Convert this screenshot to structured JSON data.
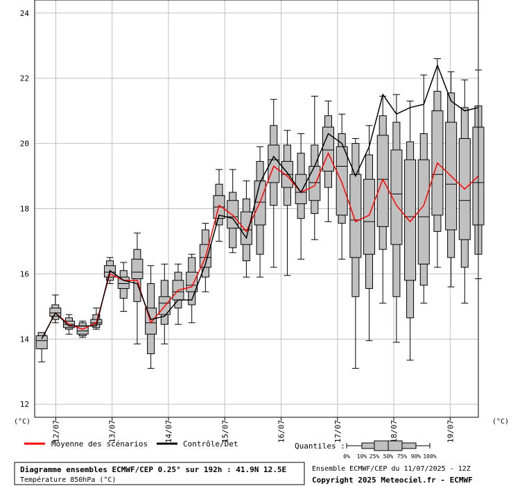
{
  "chart_data": {
    "type": "boxplot",
    "ylim": [
      11.6,
      24.4
    ],
    "yticks": [
      12,
      14,
      16,
      18,
      20,
      22,
      24
    ],
    "y_unit_left": "(°C)",
    "y_unit_right": "(°C)",
    "x_range_hours": [
      3,
      192
    ],
    "x_ticks": [
      {
        "label": "12/07",
        "hour": 12
      },
      {
        "label": "13/07",
        "hour": 36
      },
      {
        "label": "14/07",
        "hour": 60
      },
      {
        "label": "15/07",
        "hour": 84
      },
      {
        "label": "16/07",
        "hour": 108
      },
      {
        "label": "17/07",
        "hour": 132
      },
      {
        "label": "18/07",
        "hour": 156
      },
      {
        "label": "19/07",
        "hour": 180
      }
    ],
    "grid": true,
    "series": [
      {
        "name": "Moyenne des scénarios",
        "color": "#ff0000",
        "values": [
          14.0,
          14.8,
          14.45,
          14.3,
          14.5,
          16.0,
          15.8,
          15.8,
          14.5,
          15.0,
          15.5,
          15.6,
          16.5,
          18.1,
          17.8,
          17.3,
          18.2,
          19.3,
          19.0,
          18.5,
          18.7,
          19.7,
          18.8,
          17.6,
          17.8,
          18.9,
          18.1,
          17.6,
          18.1,
          19.4,
          19.0,
          18.6,
          19.0
        ]
      },
      {
        "name": "Contrôle/Det",
        "color": "#000000",
        "values": [
          14.0,
          14.8,
          14.4,
          14.4,
          14.4,
          16.1,
          15.8,
          15.7,
          14.6,
          14.7,
          15.2,
          15.2,
          16.3,
          17.8,
          17.7,
          17.1,
          18.8,
          19.6,
          19.1,
          18.5,
          19.3,
          20.3,
          20.0,
          19.0,
          19.9,
          21.5,
          20.9,
          21.1,
          21.2,
          22.4,
          21.3,
          21.0,
          21.1
        ]
      }
    ],
    "boxes": [
      {
        "min": 13.3,
        "p10": 13.7,
        "p25": 13.7,
        "p50": 13.95,
        "p75": 14.1,
        "p90": 14.2,
        "max": 14.2
      },
      {
        "min": 14.5,
        "p10": 14.6,
        "p25": 14.7,
        "p50": 14.8,
        "p75": 14.95,
        "p90": 15.05,
        "max": 15.35
      },
      {
        "min": 14.15,
        "p10": 14.3,
        "p25": 14.35,
        "p50": 14.45,
        "p75": 14.55,
        "p90": 14.65,
        "max": 14.75
      },
      {
        "min": 14.05,
        "p10": 14.1,
        "p25": 14.15,
        "p50": 14.25,
        "p75": 14.4,
        "p90": 14.5,
        "max": 14.55
      },
      {
        "min": 14.3,
        "p10": 14.35,
        "p25": 14.45,
        "p50": 14.5,
        "p75": 14.6,
        "p90": 14.75,
        "max": 14.95
      },
      {
        "min": 15.7,
        "p10": 15.8,
        "p25": 15.9,
        "p50": 16.05,
        "p75": 16.25,
        "p90": 16.4,
        "max": 16.5
      },
      {
        "min": 14.85,
        "p10": 15.25,
        "p25": 15.55,
        "p50": 15.7,
        "p75": 15.9,
        "p90": 16.1,
        "max": 16.35
      },
      {
        "min": 13.85,
        "p10": 15.15,
        "p25": 15.85,
        "p50": 16.05,
        "p75": 16.45,
        "p90": 16.75,
        "max": 17.25
      },
      {
        "min": 13.1,
        "p10": 13.55,
        "p25": 14.15,
        "p50": 14.5,
        "p75": 14.95,
        "p90": 15.7,
        "max": 16.25
      },
      {
        "min": 13.85,
        "p10": 14.45,
        "p25": 14.75,
        "p50": 15.1,
        "p75": 15.3,
        "p90": 15.8,
        "max": 16.3
      },
      {
        "min": 14.45,
        "p10": 14.95,
        "p25": 15.2,
        "p50": 15.45,
        "p75": 15.8,
        "p90": 16.05,
        "max": 16.3
      },
      {
        "min": 14.5,
        "p10": 15.05,
        "p25": 15.45,
        "p50": 15.65,
        "p75": 16.05,
        "p90": 16.5,
        "max": 16.6
      },
      {
        "min": 15.45,
        "p10": 15.9,
        "p25": 16.2,
        "p50": 16.5,
        "p75": 16.9,
        "p90": 17.35,
        "max": 17.55
      },
      {
        "min": 17.0,
        "p10": 17.5,
        "p25": 17.7,
        "p50": 18.05,
        "p75": 18.4,
        "p90": 18.75,
        "max": 19.2
      },
      {
        "min": 16.65,
        "p10": 16.8,
        "p25": 17.4,
        "p50": 17.75,
        "p75": 18.25,
        "p90": 18.5,
        "max": 19.2
      },
      {
        "min": 15.9,
        "p10": 16.4,
        "p25": 16.9,
        "p50": 17.35,
        "p75": 17.9,
        "p90": 18.3,
        "max": 18.85
      },
      {
        "min": 15.9,
        "p10": 16.6,
        "p25": 17.5,
        "p50": 18.2,
        "p75": 18.85,
        "p90": 19.45,
        "max": 19.9
      },
      {
        "min": 16.2,
        "p10": 18.1,
        "p25": 18.8,
        "p50": 19.5,
        "p75": 19.95,
        "p90": 20.55,
        "max": 21.35
      },
      {
        "min": 15.95,
        "p10": 18.1,
        "p25": 18.65,
        "p50": 19.05,
        "p75": 19.45,
        "p90": 19.95,
        "max": 20.4
      },
      {
        "min": 16.45,
        "p10": 17.7,
        "p25": 18.15,
        "p50": 18.5,
        "p75": 19.05,
        "p90": 19.7,
        "max": 20.3
      },
      {
        "min": 17.05,
        "p10": 17.85,
        "p25": 18.25,
        "p50": 18.8,
        "p75": 19.3,
        "p90": 19.95,
        "max": 21.45
      },
      {
        "min": 17.6,
        "p10": 18.65,
        "p25": 19.15,
        "p50": 19.8,
        "p75": 20.5,
        "p90": 20.85,
        "max": 21.3
      },
      {
        "min": 16.45,
        "p10": 17.55,
        "p25": 17.8,
        "p50": 19.3,
        "p75": 19.9,
        "p90": 20.3,
        "max": 20.9
      },
      {
        "min": 13.1,
        "p10": 15.3,
        "p25": 16.5,
        "p50": 17.65,
        "p75": 19.05,
        "p90": 20.0,
        "max": 20.15
      },
      {
        "min": 13.95,
        "p10": 15.55,
        "p25": 16.6,
        "p50": 17.6,
        "p75": 18.9,
        "p90": 19.65,
        "max": 20.55
      },
      {
        "min": 15.1,
        "p10": 16.75,
        "p25": 17.45,
        "p50": 18.9,
        "p75": 20.25,
        "p90": 20.85,
        "max": 21.45
      },
      {
        "min": 13.9,
        "p10": 15.3,
        "p25": 16.9,
        "p50": 18.45,
        "p75": 19.8,
        "p90": 20.65,
        "max": 21.5
      },
      {
        "min": 13.35,
        "p10": 14.65,
        "p25": 15.8,
        "p50": 17.75,
        "p75": 19.5,
        "p90": 20.05,
        "max": 21.3
      },
      {
        "min": 15.1,
        "p10": 15.65,
        "p25": 16.3,
        "p50": 17.75,
        "p75": 19.5,
        "p90": 20.3,
        "max": 22.1
      },
      {
        "min": 16.2,
        "p10": 17.3,
        "p25": 17.8,
        "p50": 19.05,
        "p75": 21.0,
        "p90": 21.6,
        "max": 22.6
      },
      {
        "min": 15.6,
        "p10": 16.5,
        "p25": 17.35,
        "p50": 18.75,
        "p75": 20.65,
        "p90": 21.55,
        "max": 22.2
      },
      {
        "min": 15.1,
        "p10": 16.2,
        "p25": 17.05,
        "p50": 18.25,
        "p75": 20.15,
        "p90": 21.1,
        "max": 21.95
      },
      {
        "min": 15.85,
        "p10": 16.6,
        "p25": 17.5,
        "p50": 18.8,
        "p75": 20.5,
        "p90": 21.15,
        "max": 22.25
      }
    ]
  },
  "legend": {
    "mean_label": "Moyenne des scénarios",
    "control_label": "Contrôle/Det",
    "mean_color": "#ff0000",
    "control_color": "#000000",
    "quantiles_title": "Quantiles :",
    "quantile_labels": [
      "0%",
      "10%",
      "25%",
      "50%",
      "75%",
      "90%",
      "100%"
    ]
  },
  "info": {
    "title": "Diagramme ensembles ECMWF/CEP 0.25° sur 192h : 41.9N 12.5E",
    "subtitle": "Température 850hPa (°C)",
    "run": "Ensemble ECMWF/CEP du 11/07/2025 - 12Z",
    "copyright": "Copyright 2025 Meteociel.fr - ECMWF"
  },
  "colors": {
    "grid": "#bfbfbf",
    "box_fill": "#c0c0c0",
    "box_stroke": "#000000"
  }
}
